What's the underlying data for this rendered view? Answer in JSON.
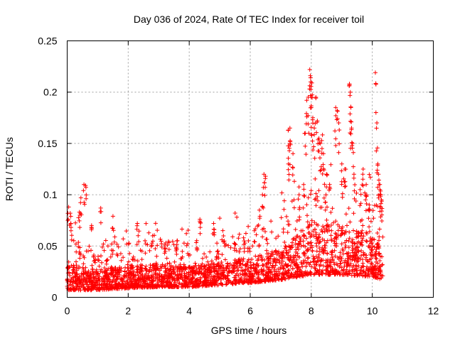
{
  "chart_data": {
    "type": "scatter",
    "title": "Day 036 of 2024, Rate Of TEC Index for receiver toil",
    "xlabel": "GPS time / hours",
    "ylabel": "ROTI / TECUs",
    "xlim": [
      0,
      12
    ],
    "ylim": [
      0,
      0.25
    ],
    "x_ticks": [
      0,
      2,
      4,
      6,
      8,
      10,
      12
    ],
    "x_tick_labels": [
      "0",
      "2",
      "4",
      "6",
      "8",
      "10",
      "12"
    ],
    "y_ticks": [
      0,
      0.05,
      0.1,
      0.15,
      0.2,
      0.25
    ],
    "y_tick_labels": [
      "0",
      "0.05",
      "0.1",
      "0.15",
      "0.2",
      "0.25"
    ],
    "grid": true,
    "marker": "plus",
    "color": "#ff0000",
    "series": [
      {
        "name": "ROTI",
        "x_range": [
          0.0,
          10.35
        ],
        "baseline_profile": [
          {
            "x": 0.0,
            "base": 0.015,
            "spread": 0.025
          },
          {
            "x": 1.0,
            "base": 0.015,
            "spread": 0.02
          },
          {
            "x": 2.0,
            "base": 0.017,
            "spread": 0.022
          },
          {
            "x": 3.0,
            "base": 0.018,
            "spread": 0.022
          },
          {
            "x": 4.0,
            "base": 0.018,
            "spread": 0.02
          },
          {
            "x": 5.0,
            "base": 0.02,
            "spread": 0.022
          },
          {
            "x": 6.0,
            "base": 0.022,
            "spread": 0.025
          },
          {
            "x": 7.0,
            "base": 0.025,
            "spread": 0.03
          },
          {
            "x": 8.0,
            "base": 0.03,
            "spread": 0.05
          },
          {
            "x": 9.0,
            "base": 0.03,
            "spread": 0.05
          },
          {
            "x": 10.0,
            "base": 0.028,
            "spread": 0.04
          },
          {
            "x": 10.35,
            "base": 0.025,
            "spread": 0.03
          }
        ],
        "notable_points": [
          {
            "x": 0.05,
            "y": 0.088
          },
          {
            "x": 0.1,
            "y": 0.082
          },
          {
            "x": 0.12,
            "y": 0.072
          },
          {
            "x": 0.4,
            "y": 0.083
          },
          {
            "x": 0.45,
            "y": 0.097
          },
          {
            "x": 0.55,
            "y": 0.11
          },
          {
            "x": 0.6,
            "y": 0.109
          },
          {
            "x": 0.8,
            "y": 0.07
          },
          {
            "x": 1.1,
            "y": 0.087
          },
          {
            "x": 1.5,
            "y": 0.079
          },
          {
            "x": 2.3,
            "y": 0.072
          },
          {
            "x": 2.8,
            "y": 0.06
          },
          {
            "x": 3.2,
            "y": 0.051
          },
          {
            "x": 3.6,
            "y": 0.055
          },
          {
            "x": 4.35,
            "y": 0.076
          },
          {
            "x": 4.8,
            "y": 0.072
          },
          {
            "x": 5.1,
            "y": 0.065
          },
          {
            "x": 5.5,
            "y": 0.052
          },
          {
            "x": 5.8,
            "y": 0.055
          },
          {
            "x": 6.3,
            "y": 0.085
          },
          {
            "x": 6.45,
            "y": 0.12
          },
          {
            "x": 6.5,
            "y": 0.118
          },
          {
            "x": 6.4,
            "y": 0.1
          },
          {
            "x": 7.25,
            "y": 0.163
          },
          {
            "x": 7.3,
            "y": 0.165
          },
          {
            "x": 7.3,
            "y": 0.15
          },
          {
            "x": 7.25,
            "y": 0.13
          },
          {
            "x": 7.4,
            "y": 0.14
          },
          {
            "x": 7.6,
            "y": 0.1
          },
          {
            "x": 7.75,
            "y": 0.11
          },
          {
            "x": 7.8,
            "y": 0.16
          },
          {
            "x": 7.85,
            "y": 0.192
          },
          {
            "x": 7.9,
            "y": 0.195
          },
          {
            "x": 7.95,
            "y": 0.222
          },
          {
            "x": 7.97,
            "y": 0.216
          },
          {
            "x": 7.98,
            "y": 0.21
          },
          {
            "x": 8.02,
            "y": 0.209
          },
          {
            "x": 8.0,
            "y": 0.185
          },
          {
            "x": 8.05,
            "y": 0.175
          },
          {
            "x": 8.1,
            "y": 0.165
          },
          {
            "x": 8.15,
            "y": 0.195
          },
          {
            "x": 8.2,
            "y": 0.172
          },
          {
            "x": 8.25,
            "y": 0.155
          },
          {
            "x": 8.3,
            "y": 0.15
          },
          {
            "x": 8.35,
            "y": 0.145
          },
          {
            "x": 8.4,
            "y": 0.14
          },
          {
            "x": 8.5,
            "y": 0.12
          },
          {
            "x": 8.6,
            "y": 0.11
          },
          {
            "x": 8.8,
            "y": 0.185
          },
          {
            "x": 8.85,
            "y": 0.182
          },
          {
            "x": 8.9,
            "y": 0.17
          },
          {
            "x": 9.0,
            "y": 0.13
          },
          {
            "x": 9.1,
            "y": 0.125
          },
          {
            "x": 9.25,
            "y": 0.208
          },
          {
            "x": 9.28,
            "y": 0.2
          },
          {
            "x": 9.3,
            "y": 0.185
          },
          {
            "x": 9.32,
            "y": 0.165
          },
          {
            "x": 9.35,
            "y": 0.15
          },
          {
            "x": 9.4,
            "y": 0.12
          },
          {
            "x": 9.6,
            "y": 0.105
          },
          {
            "x": 9.7,
            "y": 0.125
          },
          {
            "x": 9.8,
            "y": 0.11
          },
          {
            "x": 9.9,
            "y": 0.09
          },
          {
            "x": 10.1,
            "y": 0.219
          },
          {
            "x": 10.15,
            "y": 0.17
          },
          {
            "x": 10.18,
            "y": 0.13
          },
          {
            "x": 10.2,
            "y": 0.12
          },
          {
            "x": 10.22,
            "y": 0.11
          },
          {
            "x": 10.25,
            "y": 0.105
          },
          {
            "x": 10.28,
            "y": 0.1
          },
          {
            "x": 10.3,
            "y": 0.095
          }
        ]
      }
    ]
  }
}
